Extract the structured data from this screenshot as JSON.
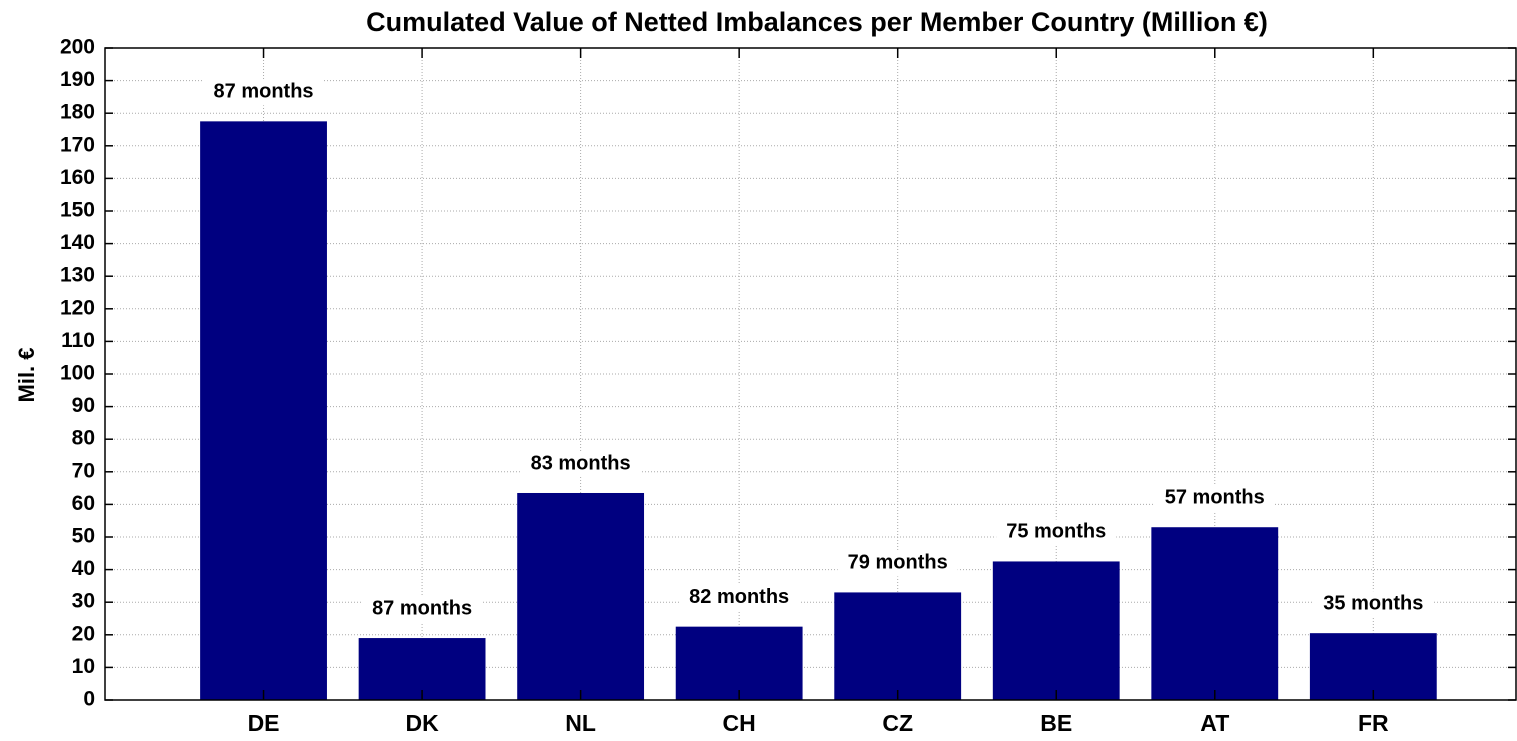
{
  "chart_data": {
    "type": "bar",
    "title": "Cumulated Value of Netted Imbalances per Member Country (Million €)",
    "y_label": "Mil. €",
    "categories": [
      "DE",
      "DK",
      "NL",
      "CH",
      "CZ",
      "BE",
      "AT",
      "FR"
    ],
    "values": [
      177.5,
      19,
      63.5,
      22.5,
      33,
      42.5,
      53,
      20.5
    ],
    "bar_labels": [
      "87 months",
      "87 months",
      "83 months",
      "82 months",
      "79 months",
      "75 months",
      "57 months",
      "35 months"
    ],
    "color": "#000080",
    "ylim": [
      0,
      200
    ],
    "yticks": [
      0,
      10,
      20,
      30,
      40,
      50,
      60,
      70,
      80,
      90,
      100,
      110,
      120,
      130,
      140,
      150,
      160,
      170,
      180,
      190,
      200
    ],
    "grid": true
  }
}
